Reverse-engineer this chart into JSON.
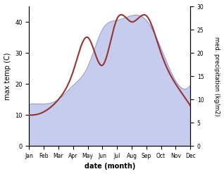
{
  "months": [
    "Jan",
    "Feb",
    "Mar",
    "Apr",
    "May",
    "Jun",
    "Jul",
    "Aug",
    "Sep",
    "Oct",
    "Nov",
    "Dec"
  ],
  "temp": [
    10,
    11,
    15,
    24,
    35,
    26,
    41,
    40,
    42,
    30,
    20,
    13
  ],
  "precip": [
    9,
    9,
    10,
    13,
    17,
    25,
    27,
    28,
    27,
    21,
    14,
    13
  ],
  "temp_color": "#993333",
  "precip_fill_color": "#c5ccee",
  "precip_line_color": "#9099cc",
  "ylabel_left": "max temp (C)",
  "ylabel_right": "med. precipitation (kg/m2)",
  "xlabel": "date (month)",
  "ylim_left": [
    0,
    45
  ],
  "ylim_right": [
    0,
    30
  ],
  "yticks_left": [
    0,
    10,
    20,
    30,
    40
  ],
  "yticks_right": [
    0,
    5,
    10,
    15,
    20,
    25,
    30
  ],
  "bg_color": "#ffffff",
  "figsize": [
    3.18,
    2.47
  ],
  "dpi": 100
}
